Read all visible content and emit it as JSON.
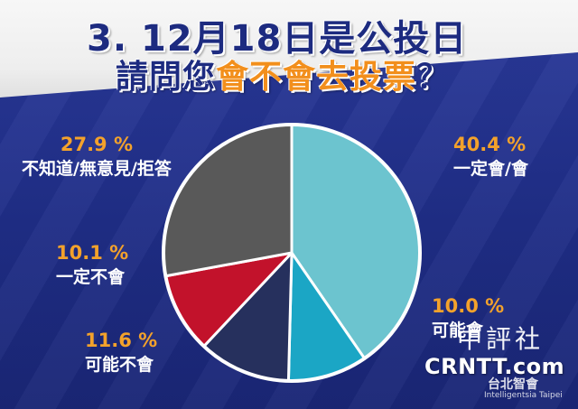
{
  "title": {
    "line1": "3. 12月18日是公投日",
    "line2_part1": "請問您",
    "line2_highlight": "會不會去投票",
    "line2_end": "？"
  },
  "chart_data": {
    "type": "pie",
    "slices": [
      {
        "label": "一定會/會",
        "value": 40.4,
        "value_text": "40.4 %",
        "color": "#6cc4cf"
      },
      {
        "label": "可能會",
        "value": 10.0,
        "value_text": "10.0 %",
        "color": "#1ba6c5"
      },
      {
        "label": "可能不會",
        "value": 11.6,
        "value_text": "11.6 %",
        "color": "#26305d"
      },
      {
        "label": "一定不會",
        "value": 10.1,
        "value_text": "10.1 %",
        "color": "#c2122b"
      },
      {
        "label": "不知道/無意見/拒答",
        "value": 27.9,
        "value_text": "27.9 %",
        "color": "#595959"
      }
    ],
    "start_angle_deg": 0,
    "direction": "clockwise",
    "legend": "none"
  },
  "watermark": {
    "brand_cn": "中評社",
    "brand_en": "CRNTT.com",
    "org_cn": "台北智會",
    "org_en": "Intelligentsia Taipei"
  }
}
